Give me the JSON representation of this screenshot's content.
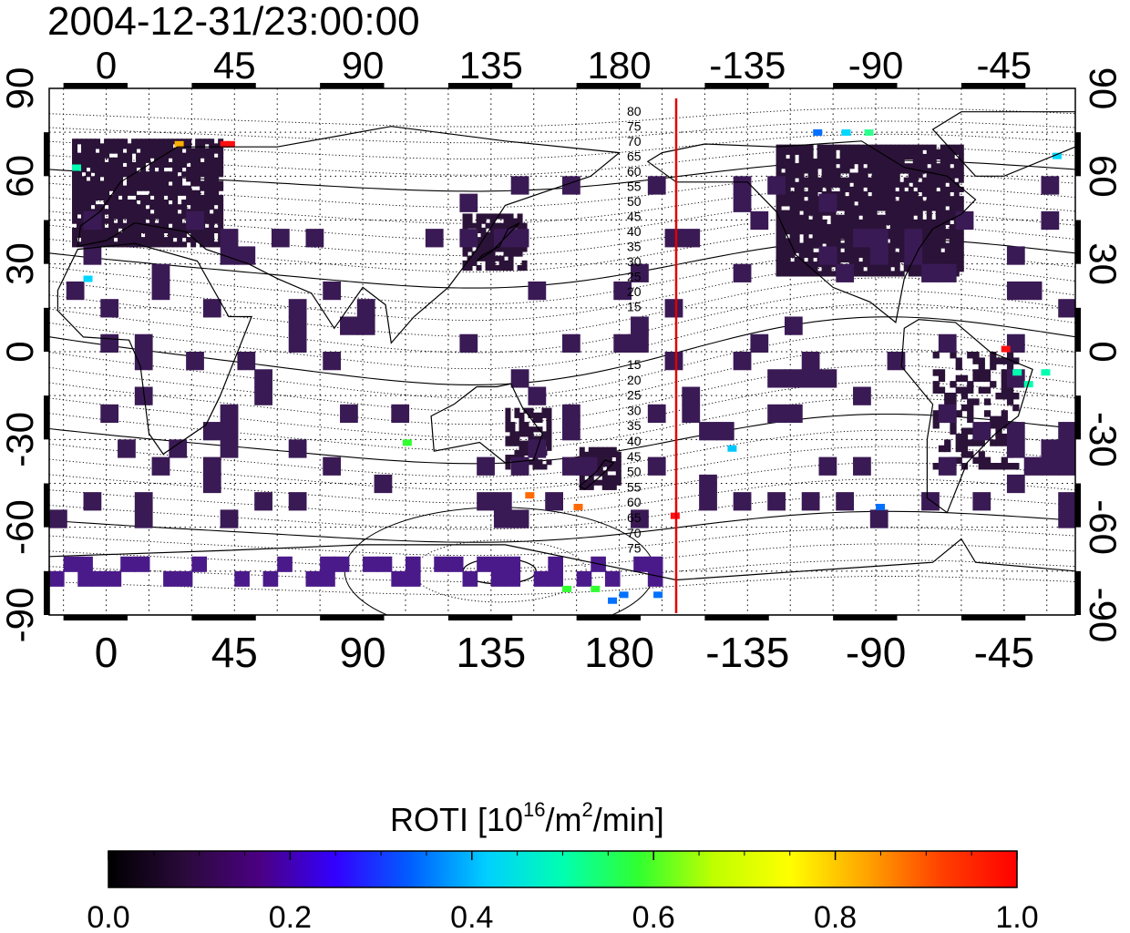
{
  "title": "2004-12-31/23:00:00",
  "map": {
    "top_axis_labels": [
      "0",
      "45",
      "90",
      "135",
      "180",
      "-135",
      "-90",
      "-45"
    ],
    "bottom_axis_labels": [
      "0",
      "45",
      "90",
      "135",
      "180",
      "-135",
      "-90",
      "-45"
    ],
    "left_axis_labels": [
      "90",
      "60",
      "30",
      "0",
      "-30",
      "-60",
      "-90"
    ],
    "right_axis_labels": [
      "90",
      "60",
      "30",
      "0",
      "-30",
      "-60",
      "-90"
    ],
    "lon_range": [
      -20,
      340
    ],
    "lat_range": [
      -90,
      90
    ],
    "grid": "dotted, 15 degree spacing",
    "meridian_line_longitude": 200,
    "meridian_line_color": "#e00000",
    "contour_labels_north": [
      "80",
      "75",
      "70",
      "65",
      "60",
      "55",
      "50",
      "45",
      "40",
      "35",
      "30",
      "25",
      "20",
      "15"
    ],
    "contour_labels_south": [
      "15",
      "20",
      "25",
      "30",
      "35",
      "40",
      "45",
      "50",
      "55",
      "60",
      "65",
      "70",
      "75"
    ]
  },
  "colorbar": {
    "title": "ROTI  [10",
    "title_sup1": "16",
    "title_mid": "/m",
    "title_sup2": "2",
    "title_end": "/min]",
    "ticks": [
      "0.0",
      "0.2",
      "0.4",
      "0.6",
      "0.8",
      "1.0"
    ],
    "min": 0.0,
    "max": 1.0,
    "stops": [
      "#000000",
      "#2a0a3a",
      "#4b0082",
      "#3300ff",
      "#0060ff",
      "#00d0ff",
      "#00ffb0",
      "#30ff30",
      "#c0ff00",
      "#ffff00",
      "#ffa500",
      "#ff4000",
      "#ff0000"
    ]
  },
  "colors": {
    "land_dark": "#2b1238",
    "land_mid": "#3a1a55",
    "coast": "#000000"
  }
}
